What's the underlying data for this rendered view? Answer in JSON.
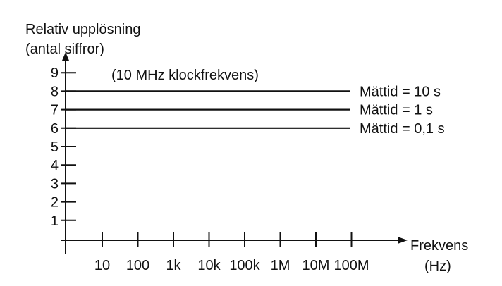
{
  "chart_data": {
    "type": "line",
    "ylabel_lines": [
      "Relativ upplösning",
      "(antal siffror)"
    ],
    "xlabel_lines": [
      "Frekvens",
      "(Hz)"
    ],
    "annotation": "(10 MHz klockfrekvens)",
    "y_ticks": [
      "1",
      "2",
      "3",
      "4",
      "5",
      "6",
      "7",
      "8",
      "9"
    ],
    "x_ticks": [
      "10",
      "100",
      "1k",
      "10k",
      "100k",
      "1M",
      "10M",
      "100M"
    ],
    "ylim": [
      0,
      9
    ],
    "series": [
      {
        "name": "Mättid = 10 s",
        "value": 8
      },
      {
        "name": "Mättid = 1 s",
        "value": 7
      },
      {
        "name": "Mättid = 0,1 s",
        "value": 6
      }
    ],
    "grid": false,
    "colors": {
      "ink": "#111111"
    }
  }
}
